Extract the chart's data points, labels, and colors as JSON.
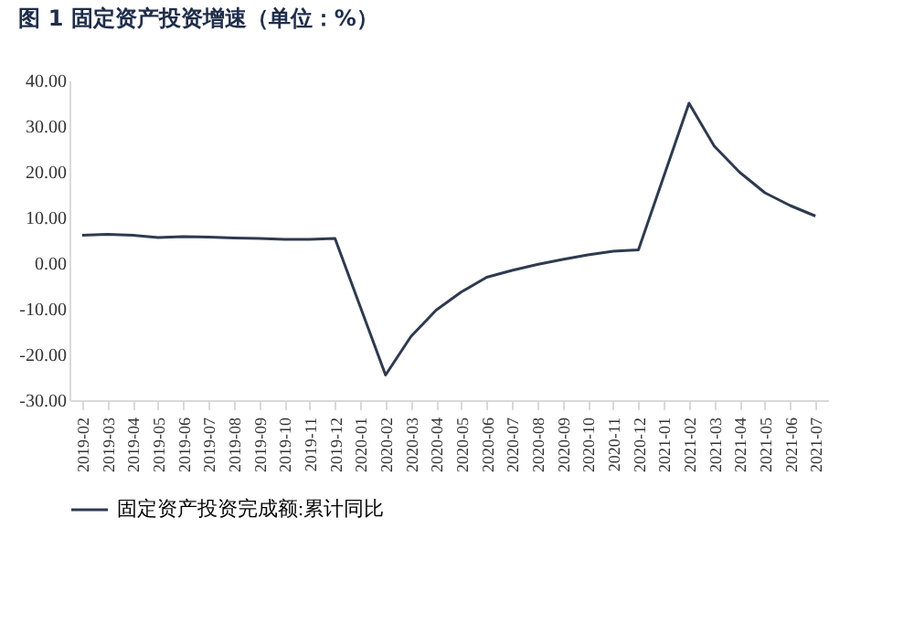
{
  "chart_data": {
    "type": "line",
    "title": "图 1 固定资产投资增速（单位：%）",
    "categories": [
      "2019-02",
      "2019-03",
      "2019-04",
      "2019-05",
      "2019-06",
      "2019-07",
      "2019-08",
      "2019-09",
      "2019-10",
      "2019-11",
      "2019-12",
      "2020-01",
      "2020-02",
      "2020-03",
      "2020-04",
      "2020-05",
      "2020-06",
      "2020-07",
      "2020-08",
      "2020-09",
      "2020-10",
      "2020-11",
      "2020-12",
      "2021-01",
      "2021-02",
      "2021-03",
      "2021-04",
      "2021-05",
      "2021-06",
      "2021-07"
    ],
    "series": [
      {
        "name": "固定资产投资完成额:累计同比",
        "color": "#2e3a4f",
        "values": [
          6.1,
          6.3,
          6.1,
          5.6,
          5.8,
          5.7,
          5.5,
          5.4,
          5.2,
          5.2,
          5.4,
          null,
          -24.5,
          -16.1,
          -10.3,
          -6.3,
          -3.1,
          -1.6,
          -0.3,
          0.8,
          1.8,
          2.6,
          2.9,
          null,
          35.0,
          25.6,
          19.9,
          15.4,
          12.6,
          10.3
        ]
      }
    ],
    "ylim": [
      -30,
      40
    ],
    "yticks": [
      {
        "value": -30,
        "label": "-30.00"
      },
      {
        "value": -20,
        "label": "-20.00"
      },
      {
        "value": -10,
        "label": "-10.00"
      },
      {
        "value": 0,
        "label": "0.00"
      },
      {
        "value": 10,
        "label": "10.00"
      },
      {
        "value": 20,
        "label": "20.00"
      },
      {
        "value": 30,
        "label": "30.00"
      },
      {
        "value": 40,
        "label": "40.00"
      }
    ],
    "grid": false,
    "legend": "bottom",
    "marker": "none",
    "line_style": "solid"
  }
}
